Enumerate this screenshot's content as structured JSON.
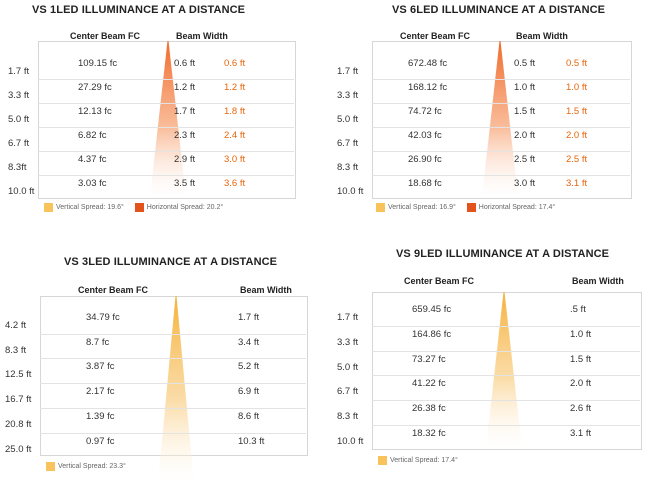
{
  "colors": {
    "vertical": "#f7c35a",
    "horizontal": "#e2541c",
    "beam_warm_top": "#ef6a2a",
    "beam_yellow_top": "#f6b23c",
    "accent_text": "#e8650a"
  },
  "chart_data": [
    {
      "type": "table",
      "title": "VS 1LED ILLUMINANCE AT A DISTANCE",
      "columns": [
        "Center Beam FC",
        "Beam Width"
      ],
      "distances": [
        "1.7 ft",
        "3.3 ft",
        "5.0 ft",
        "6.7 ft",
        "8.3ft",
        "10.0 ft"
      ],
      "center_beam": [
        "109.15 fc",
        "27.29 fc",
        "12.13 fc",
        "6.82 fc",
        "4.37 fc",
        "3.03 fc"
      ],
      "beam_vertical": [
        "0.6 ft",
        "1.2 ft",
        "1.7 ft",
        "2.3 ft",
        "2.9 ft",
        "3.5 ft"
      ],
      "beam_horizontal": [
        "0.6 ft",
        "1.2 ft",
        "1.8 ft",
        "2.4 ft",
        "3.0 ft",
        "3.6 ft"
      ],
      "legend": [
        "Vertical Spread: 19.6°",
        "Horizontal Spread: 20.2°"
      ],
      "beam_style": "warm"
    },
    {
      "type": "table",
      "title": "VS 6LED ILLUMINANCE AT A DISTANCE",
      "columns": [
        "Center Beam FC",
        "Beam Width"
      ],
      "distances": [
        "1.7 ft",
        "3.3 ft",
        "5.0 ft",
        "6.7 ft",
        "8.3 ft",
        "10.0 ft"
      ],
      "center_beam": [
        "672.48 fc",
        "168.12 fc",
        "74.72 fc",
        "42.03 fc",
        "26.90 fc",
        "18.68 fc"
      ],
      "beam_vertical": [
        "0.5 ft",
        "1.0 ft",
        "1.5 ft",
        "2.0 ft",
        "2.5 ft",
        "3.0 ft"
      ],
      "beam_horizontal": [
        "0.5 ft",
        "1.0 ft",
        "1.5 ft",
        "2.0 ft",
        "2.5 ft",
        "3.1 ft"
      ],
      "legend": [
        "Vertical Spread: 16.9°",
        "Horizontal Spread: 17.4°"
      ],
      "beam_style": "warm"
    },
    {
      "type": "table",
      "title": "VS 3LED ILLUMINANCE AT A DISTANCE",
      "columns": [
        "Center Beam FC",
        "Beam Width"
      ],
      "distances": [
        "4.2 ft",
        "8.3 ft",
        "12.5 ft",
        "16.7 ft",
        "20.8 ft",
        "25.0 ft"
      ],
      "center_beam": [
        "34.79 fc",
        "8.7 fc",
        "3.87 fc",
        "2.17 fc",
        "1.39 fc",
        "0.97 fc"
      ],
      "beam_vertical": [
        "1.7 ft",
        "3.4 ft",
        "5.2 ft",
        "6.9 ft",
        "8.6 ft",
        "10.3 ft"
      ],
      "legend": [
        "Vertical Spread: 23.3°"
      ],
      "beam_style": "yellow"
    },
    {
      "type": "table",
      "title": "VS 9LED ILLUMINANCE AT A DISTANCE",
      "columns": [
        "Center Beam FC",
        "Beam Width"
      ],
      "distances": [
        "1.7 ft",
        "3.3 ft",
        "5.0 ft",
        "6.7 ft",
        "8.3 ft",
        "10.0 ft"
      ],
      "center_beam": [
        "659.45 fc",
        "164.86 fc",
        "73.27 fc",
        "41.22 fc",
        "26.38 fc",
        "18.32 fc"
      ],
      "beam_vertical": [
        ".5 ft",
        "1.0 ft",
        "1.5 ft",
        "2.0 ft",
        "2.6 ft",
        "3.1 ft"
      ],
      "legend": [
        "Vertical Spread: 17.4°"
      ],
      "beam_style": "yellow"
    }
  ]
}
